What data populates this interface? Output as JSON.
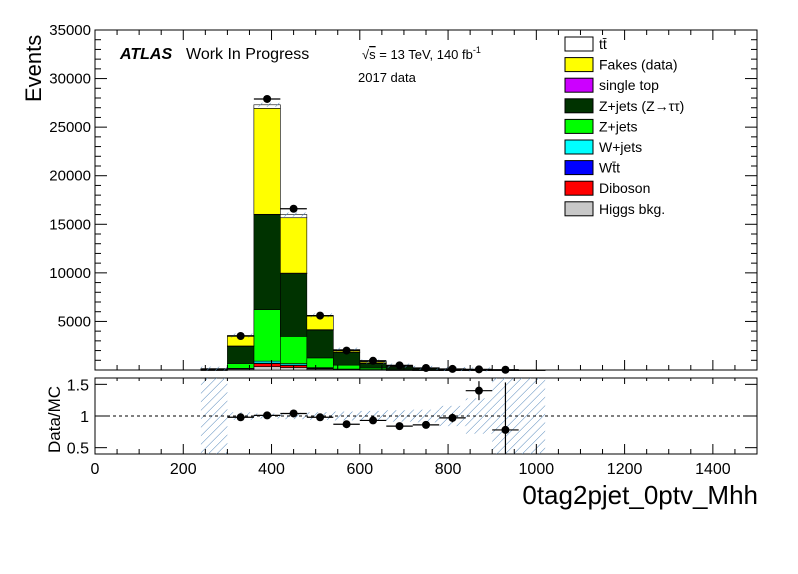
{
  "header": {
    "experiment": "ATLAS",
    "status": "Work In Progress",
    "sqrt_s": "s",
    "energy_lumi": " = 13 TeV, 140 fb",
    "lumi_exponent": "-1",
    "dataset": "2017 data"
  },
  "legend": {
    "placement": "top-right",
    "entries": [
      {
        "label": "tt̄",
        "fill": "#ffffff"
      },
      {
        "label": "Fakes (data)",
        "fill": "#ffff00"
      },
      {
        "label": "single top",
        "fill": "#cc00ff"
      },
      {
        "label": "Z+jets (Z→ττ)",
        "fill": "#003300"
      },
      {
        "label": "Z+jets",
        "fill": "#00ff00"
      },
      {
        "label": "W+jets",
        "fill": "#00ffff"
      },
      {
        "label": "Wt̄t",
        "fill": "#0000ff"
      },
      {
        "label": "Diboson",
        "fill": "#ff0000"
      },
      {
        "label": "Higgs bkg.",
        "fill": "#c8c8c8"
      }
    ]
  },
  "chart_data": [
    {
      "type": "bar",
      "stacked": true,
      "ylabel": "Events",
      "xlim": [
        0,
        1500
      ],
      "ylim": [
        0,
        35000
      ],
      "yticks": [
        5000,
        10000,
        15000,
        20000,
        25000,
        30000,
        35000
      ],
      "bin_edges": [
        240,
        300,
        360,
        420,
        480,
        540,
        600,
        660,
        720,
        780,
        840,
        900,
        960,
        1020
      ],
      "series": [
        {
          "name": "Higgs bkg.",
          "color": "#c8c8c8",
          "values": [
            10,
            90,
            350,
            250,
            90,
            40,
            20,
            10,
            5,
            3,
            2,
            1,
            0
          ]
        },
        {
          "name": "Diboson",
          "color": "#ff0000",
          "values": [
            5,
            40,
            300,
            220,
            80,
            30,
            15,
            8,
            4,
            2,
            1,
            1,
            0
          ]
        },
        {
          "name": "Wt̄t",
          "color": "#0000ff",
          "values": [
            2,
            10,
            60,
            40,
            15,
            8,
            4,
            2,
            1,
            1,
            0,
            0,
            0
          ]
        },
        {
          "name": "W+jets",
          "color": "#00ffff",
          "values": [
            5,
            30,
            200,
            150,
            60,
            20,
            10,
            5,
            2,
            1,
            1,
            0,
            0
          ]
        },
        {
          "name": "Z+jets",
          "color": "#00ff00",
          "values": [
            30,
            500,
            5300,
            2800,
            1000,
            400,
            150,
            80,
            40,
            20,
            10,
            5,
            2
          ]
        },
        {
          "name": "Z+jets (Z→ττ)",
          "color": "#003300",
          "values": [
            60,
            1800,
            9800,
            6500,
            2900,
            1350,
            500,
            250,
            120,
            60,
            30,
            15,
            6
          ]
        },
        {
          "name": "single top",
          "color": "#cc00ff",
          "values": [
            1,
            5,
            20,
            15,
            8,
            4,
            2,
            1,
            0,
            0,
            0,
            0,
            0
          ]
        },
        {
          "name": "Fakes (data)",
          "color": "#ffff00",
          "values": [
            20,
            1000,
            10900,
            5700,
            1400,
            200,
            150,
            80,
            40,
            20,
            10,
            5,
            2
          ]
        },
        {
          "name": "tt̄",
          "color": "#ffffff",
          "values": [
            5,
            75,
            370,
            325,
            65,
            48,
            19,
            14,
            8,
            3,
            1,
            0,
            0
          ]
        }
      ],
      "data_points": {
        "x": [
          330,
          390,
          450,
          510,
          570,
          630,
          690,
          750,
          810,
          870,
          930
        ],
        "y": [
          3500,
          27900,
          16600,
          5600,
          2000,
          950,
          480,
          210,
          110,
          70,
          25
        ]
      }
    },
    {
      "type": "scatter",
      "ylabel": "Data/MC",
      "xlabel": "0tag2pjet_0ptv_Mhh",
      "xlim": [
        0,
        1500
      ],
      "ylim": [
        0.4,
        1.6
      ],
      "xticks": [
        0,
        200,
        400,
        600,
        800,
        1000,
        1200,
        1400
      ],
      "yticks": [
        0.5,
        1,
        1.5
      ],
      "reference_line": 1,
      "points": [
        {
          "x": 330,
          "y": 0.98,
          "err": 0.03
        },
        {
          "x": 390,
          "y": 1.01,
          "err": 0.01
        },
        {
          "x": 450,
          "y": 1.04,
          "err": 0.02
        },
        {
          "x": 510,
          "y": 0.98,
          "err": 0.02
        },
        {
          "x": 570,
          "y": 0.87,
          "err": 0.03
        },
        {
          "x": 630,
          "y": 0.93,
          "err": 0.04
        },
        {
          "x": 690,
          "y": 0.84,
          "err": 0.04
        },
        {
          "x": 750,
          "y": 0.86,
          "err": 0.05
        },
        {
          "x": 810,
          "y": 0.97,
          "err": 0.07
        },
        {
          "x": 870,
          "y": 1.4,
          "err": 0.15
        },
        {
          "x": 930,
          "y": 0.78,
          "err": 0.75
        }
      ],
      "uncertainty_bands": [
        {
          "x0": 240,
          "x1": 300
        },
        {
          "x0": 300,
          "x1": 360,
          "half": 0.06
        },
        {
          "x0": 360,
          "x1": 420,
          "half": 0.04
        },
        {
          "x0": 420,
          "x1": 480,
          "half": 0.05
        },
        {
          "x0": 480,
          "x1": 540,
          "half": 0.06
        },
        {
          "x0": 540,
          "x1": 600,
          "half": 0.07
        },
        {
          "x0": 600,
          "x1": 660,
          "half": 0.08
        },
        {
          "x0": 660,
          "x1": 720,
          "half": 0.09
        },
        {
          "x0": 720,
          "x1": 780,
          "half": 0.1
        },
        {
          "x0": 780,
          "x1": 840,
          "half": 0.16
        },
        {
          "x0": 840,
          "x1": 900,
          "half": 0.28
        },
        {
          "x0": 900,
          "x1": 1020
        }
      ]
    }
  ]
}
